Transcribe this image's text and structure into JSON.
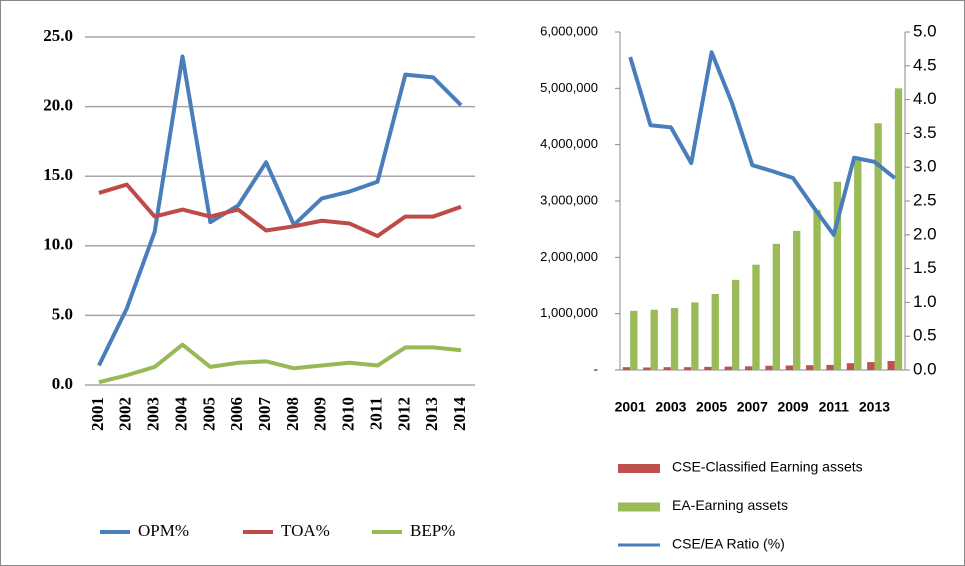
{
  "chart_data": [
    {
      "type": "line",
      "categories": [
        "2001",
        "2002",
        "2003",
        "2004",
        "2005",
        "2006",
        "2007",
        "2008",
        "2009",
        "2010",
        "2011",
        "2012",
        "2013",
        "2014"
      ],
      "series": [
        {
          "name": "OPM%",
          "color": "#4a7ebb",
          "values": [
            1.4,
            5.5,
            11.0,
            23.6,
            11.7,
            12.9,
            16.0,
            11.5,
            13.4,
            13.9,
            14.6,
            22.3,
            22.1,
            20.1
          ]
        },
        {
          "name": "TOA%",
          "color": "#be4b48",
          "values": [
            13.8,
            14.4,
            12.1,
            12.6,
            12.1,
            12.6,
            11.1,
            11.4,
            11.8,
            11.6,
            10.7,
            12.1,
            12.1,
            12.8
          ]
        },
        {
          "name": "BEP%",
          "color": "#98b954",
          "values": [
            0.2,
            0.7,
            1.3,
            2.9,
            1.3,
            1.6,
            1.7,
            1.2,
            1.4,
            1.6,
            1.4,
            2.7,
            2.7,
            2.5
          ]
        }
      ],
      "ylim": [
        0,
        25
      ],
      "yticks": [
        {
          "value": 0,
          "label": "0.0"
        },
        {
          "value": 5,
          "label": "5.0"
        },
        {
          "value": 10,
          "label": "10.0"
        },
        {
          "value": 15,
          "label": "15.0"
        },
        {
          "value": 20,
          "label": "20.0"
        },
        {
          "value": 25,
          "label": "25.0"
        }
      ],
      "grid": true,
      "legend": "bottom"
    },
    {
      "type": "bar",
      "categories": [
        "2001",
        null,
        "2003",
        null,
        "2005",
        null,
        "2007",
        null,
        "2009",
        null,
        "2011",
        null,
        "2013",
        null
      ],
      "series": [
        {
          "name": "CSE-Classified Earning assets",
          "type": "bar",
          "color": "#c0504d",
          "values": [
            50000,
            45000,
            50000,
            50000,
            55000,
            60000,
            65000,
            75000,
            80000,
            85000,
            90000,
            120000,
            140000,
            160000
          ]
        },
        {
          "name": "EA-Earning assets",
          "type": "bar",
          "color": "#9bbb59",
          "values": [
            1050000,
            1070000,
            1100000,
            1200000,
            1350000,
            1600000,
            1870000,
            2240000,
            2470000,
            2840000,
            3340000,
            3770000,
            4380000,
            5000000
          ]
        },
        {
          "name": "CSE/EA Ratio (%)",
          "type": "line",
          "axis": "y2",
          "color": "#4a7ebb",
          "values": [
            4.63,
            3.62,
            3.59,
            3.06,
            4.7,
            3.95,
            3.03,
            2.94,
            2.84,
            2.41,
            2.0,
            3.14,
            3.08,
            2.84
          ]
        }
      ],
      "ylim": [
        0,
        6000000
      ],
      "yticks": [
        {
          "value": 0,
          "label": "-"
        },
        {
          "value": 1000000,
          "label": "1,000,000"
        },
        {
          "value": 2000000,
          "label": "2,000,000"
        },
        {
          "value": 3000000,
          "label": "3,000,000"
        },
        {
          "value": 4000000,
          "label": "4,000,000"
        },
        {
          "value": 5000000,
          "label": "5,000,000"
        },
        {
          "value": 6000000,
          "label": "6,000,000"
        }
      ],
      "y2lim": [
        0,
        5
      ],
      "y2ticks": [
        {
          "value": 0,
          "label": "0.0"
        },
        0.5,
        {
          "value": 1,
          "label": "1.0"
        },
        1.5,
        {
          "value": 2,
          "label": "2.0"
        },
        2.5,
        {
          "value": 3,
          "label": "3.0"
        },
        3.5,
        {
          "value": 4,
          "label": "4.0"
        },
        4.5,
        {
          "value": 5,
          "label": "5.0"
        }
      ],
      "grid": false,
      "legend": "bottom"
    }
  ]
}
